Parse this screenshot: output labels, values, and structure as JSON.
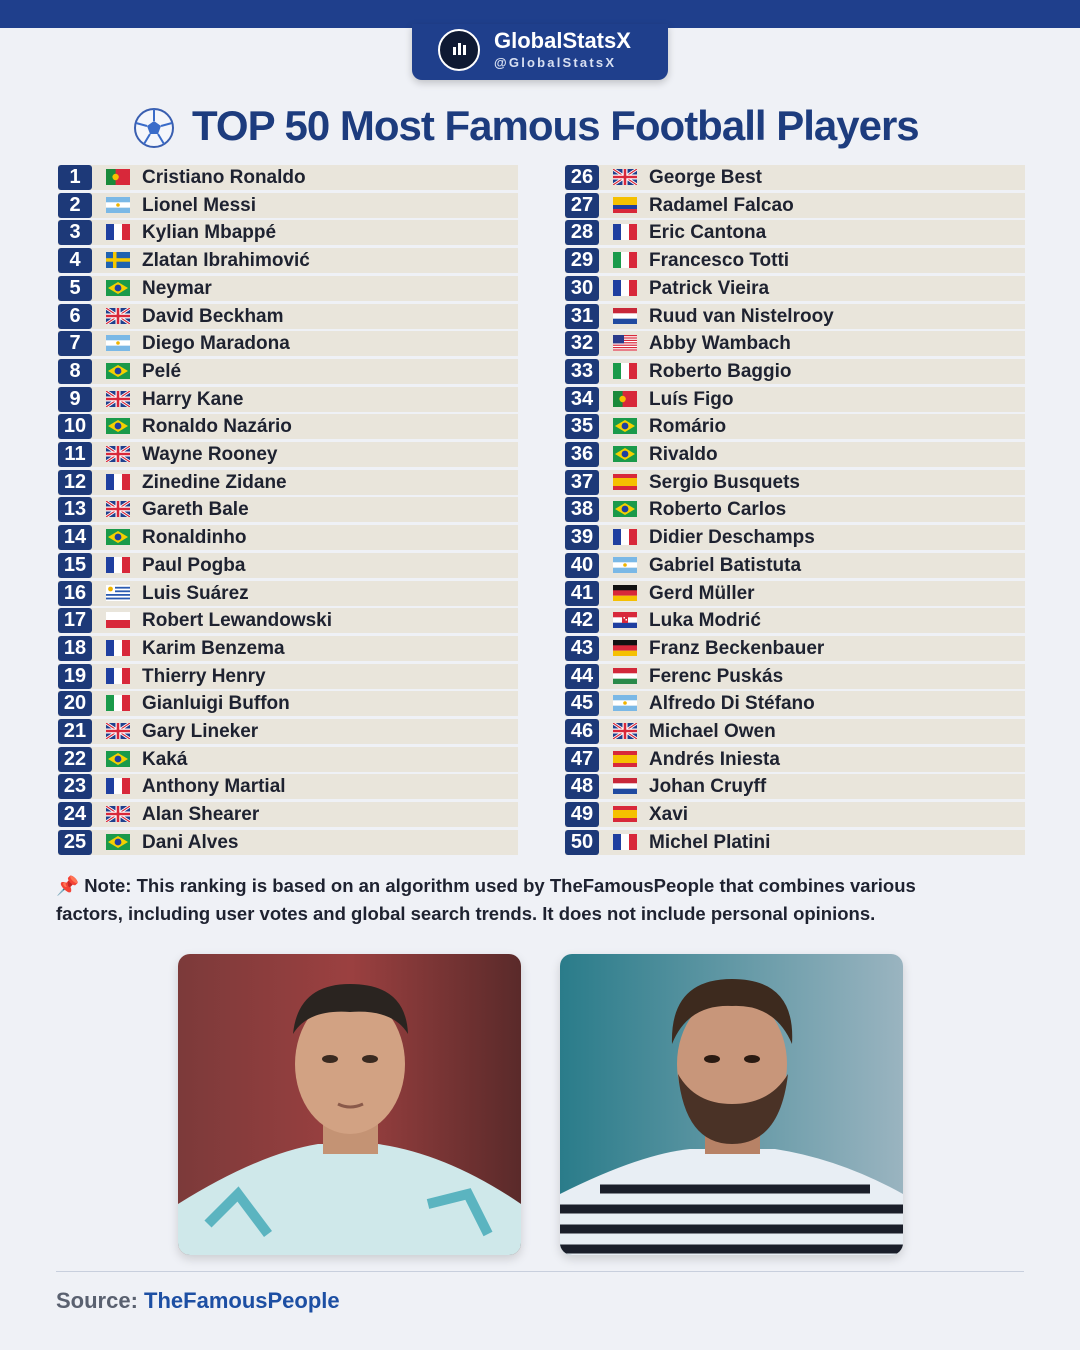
{
  "header": {
    "brand": "GlobalStatsX",
    "handle": "@GlobalStatsX"
  },
  "title": "TOP 50 Most Famous Football Players",
  "players": [
    {
      "rank": 1,
      "name": "Cristiano Ronaldo"
    },
    {
      "rank": 2,
      "name": "Lionel Messi"
    },
    {
      "rank": 3,
      "name": "Kylian Mbappé"
    },
    {
      "rank": 4,
      "name": "Zlatan Ibrahimović"
    },
    {
      "rank": 5,
      "name": "Neymar"
    },
    {
      "rank": 6,
      "name": "David Beckham"
    },
    {
      "rank": 7,
      "name": "Diego Maradona"
    },
    {
      "rank": 8,
      "name": "Pelé"
    },
    {
      "rank": 9,
      "name": "Harry Kane"
    },
    {
      "rank": 10,
      "name": "Ronaldo Nazário"
    },
    {
      "rank": 11,
      "name": "Wayne Rooney"
    },
    {
      "rank": 12,
      "name": "Zinedine Zidane"
    },
    {
      "rank": 13,
      "name": "Gareth Bale"
    },
    {
      "rank": 14,
      "name": "Ronaldinho"
    },
    {
      "rank": 15,
      "name": "Paul Pogba"
    },
    {
      "rank": 16,
      "name": "Luis Suárez"
    },
    {
      "rank": 17,
      "name": "Robert Lewandowski"
    },
    {
      "rank": 18,
      "name": "Karim Benzema"
    },
    {
      "rank": 19,
      "name": "Thierry Henry"
    },
    {
      "rank": 20,
      "name": "Gianluigi Buffon"
    },
    {
      "rank": 21,
      "name": "Gary Lineker"
    },
    {
      "rank": 22,
      "name": "Kaká"
    },
    {
      "rank": 23,
      "name": "Anthony Martial"
    },
    {
      "rank": 24,
      "name": "Alan Shearer"
    },
    {
      "rank": 25,
      "name": "Dani Alves"
    },
    {
      "rank": 26,
      "name": "George Best"
    },
    {
      "rank": 27,
      "name": "Radamel Falcao"
    },
    {
      "rank": 28,
      "name": "Eric Cantona"
    },
    {
      "rank": 29,
      "name": "Francesco Totti"
    },
    {
      "rank": 30,
      "name": "Patrick Vieira"
    },
    {
      "rank": 31,
      "name": "Ruud van Nistelrooy"
    },
    {
      "rank": 32,
      "name": "Abby Wambach"
    },
    {
      "rank": 33,
      "name": "Roberto Baggio"
    },
    {
      "rank": 34,
      "name": "Luís Figo"
    },
    {
      "rank": 35,
      "name": "Romário"
    },
    {
      "rank": 36,
      "name": "Rivaldo"
    },
    {
      "rank": 37,
      "name": "Sergio Busquets"
    },
    {
      "rank": 38,
      "name": "Roberto Carlos"
    },
    {
      "rank": 39,
      "name": "Didier Deschamps"
    },
    {
      "rank": 40,
      "name": "Gabriel Batistuta"
    },
    {
      "rank": 41,
      "name": "Gerd Müller"
    },
    {
      "rank": 42,
      "name": "Luka Modrić"
    },
    {
      "rank": 43,
      "name": "Franz Beckenbauer"
    },
    {
      "rank": 44,
      "name": "Ferenc Puskás"
    },
    {
      "rank": 45,
      "name": "Alfredo Di Stéfano"
    },
    {
      "rank": 46,
      "name": "Michael Owen"
    },
    {
      "rank": 47,
      "name": "Andrés Iniesta"
    },
    {
      "rank": 48,
      "name": "Johan Cruyff"
    },
    {
      "rank": 49,
      "name": "Xavi"
    },
    {
      "rank": 50,
      "name": "Michel Platini"
    }
  ],
  "note": "Note: This ranking is based on an algorithm used by TheFamousPeople that combines various factors, including user votes and global search trends. It does not include personal opinions.",
  "source": {
    "label": "Source:",
    "name": "TheFamousPeople"
  }
}
